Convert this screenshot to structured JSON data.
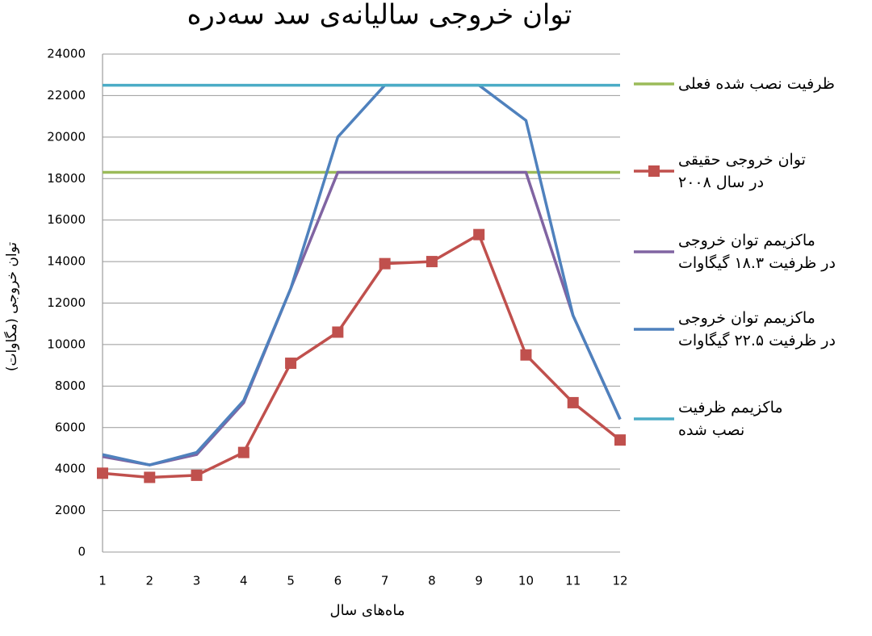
{
  "chart_data": {
    "type": "line",
    "title": "توان خروجی سالیانه‌ی سد سه‌دره",
    "x_label": "ماه‌های سال",
    "y_label": "توان خروجی (مگاوات)",
    "x": [
      1,
      2,
      3,
      4,
      5,
      6,
      7,
      8,
      9,
      10,
      11,
      12
    ],
    "xlim": [
      1,
      12
    ],
    "xticks": [
      1,
      2,
      3,
      4,
      5,
      6,
      7,
      8,
      9,
      10,
      11,
      12
    ],
    "ylim": [
      0,
      24000
    ],
    "yticks": [
      0,
      2000,
      4000,
      6000,
      8000,
      10000,
      12000,
      14000,
      16000,
      18000,
      20000,
      22000,
      24000
    ],
    "grid": true,
    "legend": "right",
    "series": [
      {
        "name": "ظرفیت نصب شده فعلی",
        "color": "#9bbb59",
        "values": [
          18300,
          18300,
          18300,
          18300,
          18300,
          18300,
          18300,
          18300,
          18300,
          18300,
          18300,
          18300
        ]
      },
      {
        "name": "توان خروجی حقیقی\nدر سال ۲۰۰۸",
        "color": "#c0504d",
        "marker": "square",
        "values": [
          3800,
          3600,
          3700,
          4800,
          9100,
          10600,
          13900,
          14000,
          15300,
          9500,
          7200,
          5400
        ]
      },
      {
        "name": "ماکزیمم توان خروجی\nدر ظرفیت ۱۸.۳ گیگاوات",
        "color": "#8064a2",
        "values": [
          4600,
          4200,
          4700,
          7200,
          12700,
          18300,
          18300,
          18300,
          18300,
          18300,
          11400,
          6400
        ]
      },
      {
        "name": "ماکزیمم توان خروجی\nدر ظرفیت ۲۲.۵ گیگاوات",
        "color": "#4f81bd",
        "values": [
          4700,
          4200,
          4800,
          7300,
          12700,
          20000,
          22500,
          22500,
          22500,
          20800,
          11400,
          6400
        ]
      },
      {
        "name": "ماکزیمم ظرفیت\nنصب شده",
        "color": "#4bacc6",
        "values": [
          22500,
          22500,
          22500,
          22500,
          22500,
          22500,
          22500,
          22500,
          22500,
          22500,
          22500,
          22500
        ]
      }
    ]
  }
}
